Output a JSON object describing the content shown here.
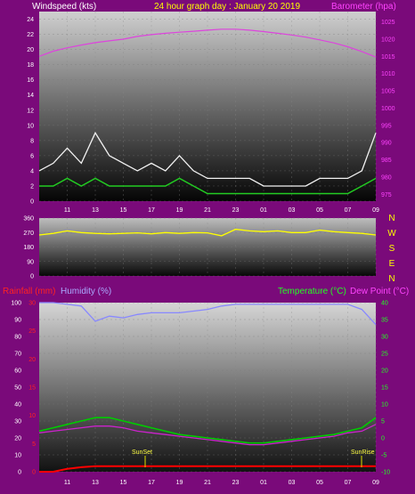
{
  "header": {
    "windspeed_label": "Windspeed (kts)",
    "title": "24 hour graph day : January 20 2019",
    "barometer_label": "Barometer (hpa)"
  },
  "compass": [
    "N",
    "W",
    "S",
    "E",
    "N"
  ],
  "lower_labels": {
    "rainfall": "Rainfall (mm)",
    "humidity": "Humidity (%)",
    "temperature": "Temperature (°C)",
    "dewpoint": "Dew Point (°C)",
    "sunset": "SunSet",
    "sunrise": "SunRise"
  },
  "colors": {
    "wind_gust": "#f2f2f2",
    "wind_avg": "#22cc22",
    "barometer": "#dd44dd",
    "direction": "#ffff00",
    "temperature": "#00cc00",
    "dewpoint": "#cc22cc",
    "humidity": "#8888ff",
    "rain": "#ff0000",
    "sun_marker": "#dddd00"
  },
  "chart_data": [
    {
      "type": "line",
      "title": "24 hour graph day : January 20 2019",
      "xlabel": "",
      "x_tick_labels": [
        "11",
        "13",
        "15",
        "17",
        "19",
        "21",
        "23",
        "01",
        "03",
        "05",
        "07",
        "09"
      ],
      "ylabel": "Windspeed (kts)",
      "ylim": [
        0,
        25
      ],
      "y_ticks": [
        0,
        2,
        4,
        6,
        8,
        10,
        12,
        14,
        16,
        18,
        20,
        22,
        24
      ],
      "y2label": "Barometer (hpa)",
      "y2lim": [
        973,
        1028
      ],
      "y2_ticks": [
        975,
        980,
        985,
        990,
        995,
        1000,
        1005,
        1010,
        1015,
        1020,
        1025
      ],
      "x_hours": [
        9,
        10,
        11,
        12,
        13,
        14,
        15,
        16,
        17,
        18,
        19,
        20,
        21,
        22,
        23,
        24,
        25,
        26,
        27,
        28,
        29,
        30,
        31,
        32,
        33
      ],
      "series": [
        {
          "name": "Windspeed",
          "key": "gust",
          "values": [
            4,
            5,
            7,
            5,
            9,
            6,
            5,
            4,
            5,
            4,
            6,
            4,
            3,
            3,
            3,
            3,
            2,
            2,
            2,
            2,
            3,
            3,
            3,
            4,
            9
          ]
        },
        {
          "name": "Windspeed",
          "key": "avg",
          "values": [
            2,
            2,
            3,
            2,
            3,
            2,
            2,
            2,
            2,
            2,
            3,
            2,
            1,
            1,
            1,
            1,
            1,
            1,
            1,
            1,
            1,
            1,
            1,
            2,
            3
          ]
        },
        {
          "name": "Barometer (hpa)",
          "key": "barometer",
          "values": [
            1015,
            1016.5,
            1017.5,
            1018.3,
            1019,
            1019.5,
            1020,
            1020.8,
            1021.3,
            1021.7,
            1022,
            1022.3,
            1022.6,
            1022.9,
            1022.9,
            1022.6,
            1022.2,
            1021.7,
            1021.2,
            1020.6,
            1019.8,
            1018.9,
            1017.8,
            1016.4,
            1014.8
          ]
        }
      ]
    },
    {
      "type": "line",
      "title": "",
      "ylim": [
        0,
        360
      ],
      "y_ticks": [
        0,
        90,
        180,
        270,
        360
      ],
      "x_hours": [
        9,
        10,
        11,
        12,
        13,
        14,
        15,
        16,
        17,
        18,
        19,
        20,
        21,
        22,
        23,
        24,
        25,
        26,
        27,
        28,
        29,
        30,
        31,
        32,
        33
      ],
      "series": [
        {
          "name": "",
          "key": "direction",
          "values": [
            255,
            265,
            280,
            270,
            265,
            262,
            265,
            268,
            262,
            270,
            265,
            270,
            268,
            250,
            290,
            280,
            275,
            280,
            270,
            270,
            285,
            275,
            270,
            265,
            255
          ]
        }
      ]
    },
    {
      "type": "line",
      "title": "",
      "x_tick_labels": [
        "11",
        "13",
        "15",
        "17",
        "19",
        "21",
        "23",
        "01",
        "03",
        "05",
        "07",
        "09"
      ],
      "y_left_rain_lim": [
        0,
        30
      ],
      "y_left_rain_ticks": [
        0,
        5,
        10,
        15,
        20,
        25,
        30
      ],
      "y_left_humidity_lim": [
        0,
        100
      ],
      "y_left_humidity_ticks": [
        0,
        10,
        20,
        30,
        40,
        50,
        60,
        70,
        80,
        90,
        100
      ],
      "y_right_temp_lim": [
        -10,
        40
      ],
      "y_right_temp_ticks": [
        -10,
        -5,
        0,
        5,
        10,
        15,
        20,
        25,
        30,
        35,
        40
      ],
      "x_hours": [
        9,
        10,
        11,
        12,
        13,
        14,
        15,
        16,
        17,
        18,
        19,
        20,
        21,
        22,
        23,
        24,
        25,
        26,
        27,
        28,
        29,
        30,
        31,
        32,
        33
      ],
      "series": [
        {
          "name": "Humidity (%)",
          "key": "humidity",
          "values": [
            100,
            100,
            99,
            98,
            89,
            92,
            91,
            93,
            94,
            94,
            94,
            95,
            96,
            98,
            99,
            99,
            99,
            99,
            99,
            99,
            99,
            99,
            99,
            96,
            87
          ]
        },
        {
          "name": "Temperature (°C)",
          "key": "temperature",
          "values": [
            2,
            3,
            4,
            5,
            6,
            6,
            5,
            4,
            3,
            2,
            1,
            0.5,
            0,
            -0.5,
            -1,
            -1.5,
            -1.5,
            -1,
            -0.5,
            0,
            0.5,
            1,
            2,
            3,
            6
          ]
        },
        {
          "name": "Dew Point (°C)",
          "key": "dewpoint",
          "values": [
            1.5,
            2,
            2.5,
            3,
            3.5,
            3.5,
            3,
            2,
            1.5,
            1,
            0.5,
            0,
            -0.5,
            -1,
            -1.5,
            -2,
            -2,
            -1.5,
            -1,
            -0.5,
            0,
            0.5,
            1.5,
            2,
            4
          ]
        },
        {
          "name": "Rainfall (mm)",
          "key": "rain",
          "values": [
            0,
            0,
            0.5,
            0.8,
            1,
            1,
            1,
            1,
            1,
            1,
            1,
            1,
            1,
            1,
            1,
            1,
            1,
            1,
            1,
            1,
            1,
            1,
            1,
            1,
            1
          ]
        }
      ]
    }
  ]
}
